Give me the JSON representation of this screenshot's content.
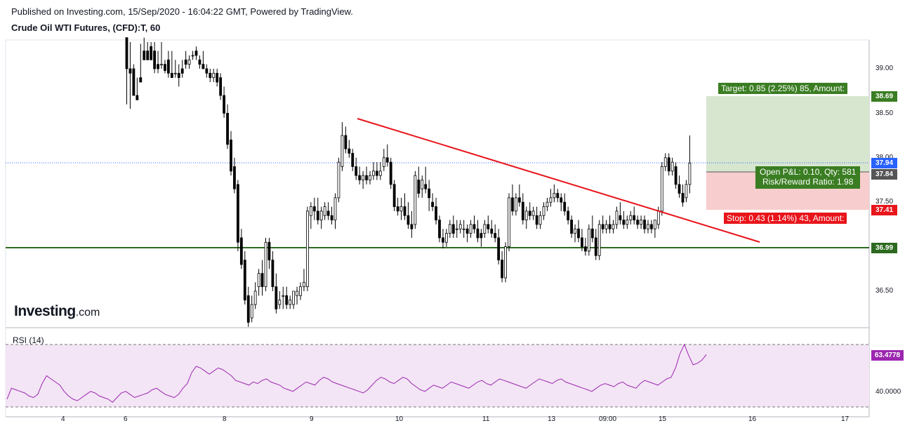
{
  "header": {
    "published": "Published on Investing.com, 15/Sep/2020 - 16:04:22 GMT, Powered by TradingView.",
    "title": "Crude Oil WTI Futures, (CFD):T, 60"
  },
  "logo": {
    "main": "Investing",
    "suffix": ".com"
  },
  "colors": {
    "up": "#ffffff",
    "down": "#000000",
    "wick": "#000000",
    "trendline": "#e8151b",
    "support": "#2d6a1f",
    "last_price_line": "#2962ff",
    "target": "#3a7d22",
    "stop": "#e8151b",
    "rsi": "#9c27b0",
    "rsi_fill": "#f3e5f5"
  },
  "price_axis": {
    "ticks": [
      "39.00",
      "38.50",
      "38.00",
      "37.50",
      "36.50"
    ]
  },
  "price_labels": [
    {
      "name": "target-price-label",
      "value": "38.69",
      "color": "#3a7d22"
    },
    {
      "name": "last-price-label",
      "value": "37.94",
      "color": "#2962ff"
    },
    {
      "name": "entry-price-label",
      "value": "37.84",
      "color": "#555555"
    },
    {
      "name": "stop-price-label",
      "value": "37.41",
      "color": "#e8151b"
    },
    {
      "name": "support-price-label",
      "value": "36.99",
      "color": "#2d6a1f"
    },
    {
      "name": "rsi-value-label",
      "value": "63.4778",
      "color": "#9c27b0"
    }
  ],
  "position": {
    "target_text": "Target: 0.85 (2.25%) 85, Amount:",
    "pnl_text": "Open P&L: 0.10, Qty: 581",
    "rr_text": "Risk/Reward Ratio: 1.98",
    "stop_text": "Stop: 0.43 (1.14%) 43, Amount:"
  },
  "rsi": {
    "label": "RSI (14)",
    "tick": "40.0000"
  },
  "x_axis": {
    "ticks": [
      "4",
      "6",
      "8",
      "9",
      "10",
      "11",
      "13",
      "09:00",
      "15",
      "16",
      "17"
    ]
  },
  "chart_data": {
    "type": "candlestick",
    "title": "Crude Oil WTI Futures, (CFD):T, 60",
    "x_labels": [
      "4",
      "6",
      "8",
      "9",
      "10",
      "11",
      "13",
      "09:00",
      "15",
      "16",
      "17"
    ],
    "y_ticks": [
      36.5,
      37.5,
      38.0,
      38.5,
      39.0
    ],
    "support_level": 36.99,
    "last_price": 37.94,
    "entry_price": 37.84,
    "target_price": 38.69,
    "stop_price": 37.41,
    "trendline": [
      {
        "x": "10",
        "y": 38.43
      },
      {
        "x": "16",
        "y": 37.07
      }
    ],
    "candles": [
      [
        39.35,
        39.3,
        39.0,
        38.6
      ],
      [
        39.0,
        39.3,
        38.95,
        38.55
      ],
      [
        39.0,
        39.05,
        38.7,
        38.7
      ],
      [
        38.7,
        38.9,
        38.65,
        38.65
      ],
      [
        38.9,
        39.28,
        38.85,
        38.85
      ],
      [
        39.2,
        39.35,
        39.1,
        39.1
      ],
      [
        39.2,
        39.3,
        39.1,
        39.1
      ],
      [
        39.25,
        39.3,
        39.1,
        39.1
      ],
      [
        39.2,
        39.3,
        39.0,
        38.95
      ],
      [
        39.05,
        39.2,
        39.0,
        38.95
      ],
      [
        39.05,
        39.3,
        39.05,
        39.0
      ],
      [
        39.05,
        39.1,
        38.98,
        38.95
      ],
      [
        39.1,
        39.2,
        38.95,
        38.9
      ],
      [
        38.95,
        39.2,
        38.9,
        38.9
      ],
      [
        38.95,
        39.1,
        38.95,
        38.9
      ],
      [
        38.95,
        39.05,
        38.9,
        38.8
      ],
      [
        39.0,
        39.1,
        38.95,
        38.9
      ],
      [
        39.1,
        39.2,
        39.05,
        39.0
      ],
      [
        39.05,
        39.15,
        39.1,
        39.0
      ],
      [
        39.15,
        39.2,
        39.15,
        39.1
      ],
      [
        39.2,
        39.25,
        39.15,
        39.1
      ],
      [
        39.1,
        39.15,
        39.05,
        39.0
      ],
      [
        39.05,
        39.2,
        39.0,
        39.0
      ],
      [
        39.0,
        39.05,
        38.95,
        38.9
      ],
      [
        38.95,
        39.0,
        38.9,
        38.85
      ],
      [
        38.9,
        39.0,
        38.95,
        38.85
      ],
      [
        38.95,
        39.0,
        38.85,
        38.8
      ],
      [
        38.9,
        38.95,
        38.7,
        38.65
      ],
      [
        38.7,
        38.8,
        38.5,
        38.45
      ],
      [
        38.5,
        38.6,
        38.15,
        38.1
      ],
      [
        38.2,
        38.3,
        37.85,
        37.8
      ],
      [
        37.9,
        38.0,
        37.65,
        37.6
      ],
      [
        37.7,
        37.75,
        37.05,
        36.95
      ],
      [
        37.1,
        37.2,
        36.8,
        36.75
      ],
      [
        36.85,
        36.95,
        36.4,
        36.35
      ],
      [
        36.45,
        36.55,
        36.15,
        36.1
      ],
      [
        36.2,
        36.45,
        36.35,
        36.15
      ],
      [
        36.35,
        36.6,
        36.5,
        36.3
      ],
      [
        36.55,
        36.75,
        36.7,
        36.45
      ],
      [
        36.7,
        36.85,
        36.55,
        36.45
      ],
      [
        36.55,
        37.1,
        37.05,
        36.5
      ],
      [
        37.05,
        37.1,
        36.85,
        36.75
      ],
      [
        36.85,
        36.95,
        36.55,
        36.5
      ],
      [
        36.55,
        36.7,
        36.3,
        36.25
      ],
      [
        36.35,
        36.5,
        36.4,
        36.3
      ],
      [
        36.45,
        36.55,
        36.45,
        36.3
      ],
      [
        36.45,
        36.55,
        36.35,
        36.3
      ],
      [
        36.35,
        36.45,
        36.4,
        36.3
      ],
      [
        36.35,
        36.5,
        36.5,
        36.3
      ],
      [
        36.45,
        36.55,
        36.5,
        36.35
      ],
      [
        36.45,
        36.6,
        36.55,
        36.4
      ],
      [
        36.55,
        36.75,
        36.6,
        36.5
      ],
      [
        36.55,
        37.45,
        37.4,
        36.5
      ],
      [
        37.35,
        37.5,
        37.45,
        37.2
      ],
      [
        37.45,
        37.55,
        37.4,
        37.3
      ],
      [
        37.4,
        37.55,
        37.3,
        37.25
      ],
      [
        37.3,
        37.45,
        37.4,
        37.2
      ],
      [
        37.35,
        37.5,
        37.45,
        37.3
      ],
      [
        37.4,
        37.5,
        37.35,
        37.3
      ],
      [
        37.35,
        37.45,
        37.3,
        37.25
      ],
      [
        37.3,
        37.6,
        37.55,
        37.2
      ],
      [
        37.55,
        38.0,
        37.95,
        37.5
      ],
      [
        37.9,
        38.4,
        38.25,
        37.85
      ],
      [
        38.25,
        38.35,
        38.1,
        38.05
      ],
      [
        38.1,
        38.2,
        38.05,
        38.0
      ],
      [
        38.05,
        38.1,
        37.9,
        37.85
      ],
      [
        37.9,
        38.0,
        37.8,
        37.75
      ],
      [
        37.8,
        37.9,
        37.75,
        37.7
      ],
      [
        37.75,
        37.85,
        37.8,
        37.65
      ],
      [
        37.8,
        37.9,
        37.75,
        37.7
      ],
      [
        37.75,
        37.85,
        37.8,
        37.7
      ],
      [
        37.8,
        37.95,
        37.85,
        37.75
      ],
      [
        37.85,
        37.95,
        37.8,
        37.75
      ],
      [
        37.8,
        37.95,
        37.85,
        37.75
      ],
      [
        37.9,
        38.1,
        38.0,
        37.85
      ],
      [
        38.0,
        38.15,
        37.95,
        37.9
      ],
      [
        37.95,
        38.0,
        37.7,
        37.65
      ],
      [
        37.7,
        37.75,
        37.45,
        37.4
      ],
      [
        37.45,
        37.55,
        37.4,
        37.35
      ],
      [
        37.4,
        37.55,
        37.45,
        37.3
      ],
      [
        37.45,
        37.6,
        37.35,
        37.3
      ],
      [
        37.35,
        37.5,
        37.25,
        37.2
      ],
      [
        37.25,
        37.4,
        37.2,
        37.1
      ],
      [
        37.25,
        37.85,
        37.8,
        37.2
      ],
      [
        37.75,
        37.9,
        37.6,
        37.55
      ],
      [
        37.65,
        37.8,
        37.75,
        37.55
      ],
      [
        37.7,
        37.9,
        37.65,
        37.6
      ],
      [
        37.65,
        37.75,
        37.55,
        37.4
      ],
      [
        37.5,
        37.6,
        37.45,
        37.4
      ],
      [
        37.45,
        37.55,
        37.3,
        37.25
      ],
      [
        37.3,
        37.35,
        37.1,
        37.05
      ],
      [
        37.1,
        37.2,
        37.05,
        36.98
      ],
      [
        37.05,
        37.2,
        37.15,
        37.0
      ],
      [
        37.15,
        37.3,
        37.25,
        37.1
      ],
      [
        37.25,
        37.35,
        37.15,
        37.1
      ],
      [
        37.2,
        37.3,
        37.2,
        37.1
      ],
      [
        37.2,
        37.3,
        37.25,
        37.15
      ],
      [
        37.2,
        37.3,
        37.2,
        37.1
      ],
      [
        37.2,
        37.25,
        37.15,
        37.05
      ],
      [
        37.15,
        37.3,
        37.25,
        37.1
      ],
      [
        37.25,
        37.35,
        37.2,
        37.15
      ],
      [
        37.2,
        37.3,
        37.1,
        37.05
      ],
      [
        37.15,
        37.2,
        37.1,
        37.0
      ],
      [
        37.15,
        37.3,
        37.25,
        37.1
      ],
      [
        37.25,
        37.35,
        37.2,
        37.15
      ],
      [
        37.2,
        37.3,
        37.15,
        37.1
      ],
      [
        37.15,
        37.25,
        37.1,
        37.05
      ],
      [
        37.1,
        37.2,
        36.85,
        36.8
      ],
      [
        36.85,
        36.95,
        36.65,
        36.6
      ],
      [
        36.65,
        37.05,
        37.0,
        36.6
      ],
      [
        37.0,
        37.6,
        37.55,
        36.95
      ],
      [
        37.55,
        37.7,
        37.4,
        37.35
      ],
      [
        37.4,
        37.6,
        37.55,
        37.35
      ],
      [
        37.55,
        37.7,
        37.5,
        37.45
      ],
      [
        37.5,
        37.6,
        37.3,
        37.25
      ],
      [
        37.3,
        37.45,
        37.4,
        37.2
      ],
      [
        37.4,
        37.5,
        37.35,
        37.3
      ],
      [
        37.35,
        37.45,
        37.4,
        37.3
      ],
      [
        37.35,
        37.45,
        37.25,
        37.2
      ],
      [
        37.25,
        37.4,
        37.35,
        37.2
      ],
      [
        37.35,
        37.5,
        37.45,
        37.3
      ],
      [
        37.45,
        37.55,
        37.5,
        37.4
      ],
      [
        37.5,
        37.65,
        37.55,
        37.45
      ],
      [
        37.55,
        37.7,
        37.6,
        37.5
      ],
      [
        37.6,
        37.65,
        37.55,
        37.5
      ],
      [
        37.55,
        37.6,
        37.5,
        37.4
      ],
      [
        37.5,
        37.6,
        37.4,
        37.35
      ],
      [
        37.4,
        37.45,
        37.3,
        37.25
      ],
      [
        37.3,
        37.35,
        37.15,
        37.1
      ],
      [
        37.15,
        37.25,
        37.2,
        37.05
      ],
      [
        37.2,
        37.3,
        37.1,
        37.05
      ],
      [
        37.1,
        37.2,
        37.0,
        36.95
      ],
      [
        37.0,
        37.1,
        36.95,
        36.9
      ],
      [
        36.95,
        37.25,
        37.2,
        36.9
      ],
      [
        37.2,
        37.35,
        37.1,
        37.05
      ],
      [
        37.1,
        37.2,
        36.9,
        36.85
      ],
      [
        36.9,
        37.3,
        37.25,
        36.85
      ],
      [
        37.25,
        37.35,
        37.2,
        37.15
      ],
      [
        37.2,
        37.3,
        37.25,
        37.15
      ],
      [
        37.25,
        37.35,
        37.2,
        37.15
      ],
      [
        37.2,
        37.3,
        37.25,
        37.15
      ],
      [
        37.25,
        37.45,
        37.4,
        37.2
      ],
      [
        37.35,
        37.5,
        37.3,
        37.25
      ],
      [
        37.3,
        37.4,
        37.25,
        37.2
      ],
      [
        37.25,
        37.35,
        37.3,
        37.2
      ],
      [
        37.3,
        37.4,
        37.35,
        37.25
      ],
      [
        37.35,
        37.45,
        37.3,
        37.25
      ],
      [
        37.3,
        37.35,
        37.25,
        37.2
      ],
      [
        37.25,
        37.35,
        37.3,
        37.2
      ],
      [
        37.3,
        37.35,
        37.2,
        37.15
      ],
      [
        37.2,
        37.3,
        37.25,
        37.15
      ],
      [
        37.25,
        37.3,
        37.2,
        37.15
      ],
      [
        37.2,
        37.25,
        37.3,
        37.1
      ],
      [
        37.25,
        37.45,
        37.4,
        37.2
      ],
      [
        37.4,
        37.95,
        37.9,
        37.35
      ],
      [
        37.9,
        38.05,
        38.0,
        37.85
      ],
      [
        38.0,
        38.05,
        37.85,
        37.8
      ],
      [
        37.85,
        38.0,
        37.95,
        37.8
      ],
      [
        37.9,
        37.95,
        37.7,
        37.65
      ],
      [
        37.7,
        37.8,
        37.6,
        37.55
      ],
      [
        37.6,
        37.7,
        37.5,
        37.45
      ],
      [
        37.55,
        37.75,
        37.7,
        37.5
      ],
      [
        37.7,
        38.25,
        37.94,
        37.6
      ]
    ],
    "rsi_series": [
      35,
      42,
      41,
      40,
      39,
      37,
      36,
      38,
      45,
      50,
      48,
      46,
      44,
      40,
      37,
      35,
      34,
      36,
      38,
      40,
      39,
      37,
      36,
      35,
      33,
      36,
      39,
      40,
      38,
      36,
      37,
      38,
      39,
      41,
      42,
      40,
      38,
      37,
      36,
      38,
      42,
      45,
      52,
      56,
      55,
      53,
      51,
      53,
      55,
      54,
      52,
      50,
      47,
      46,
      45,
      44,
      46,
      45,
      47,
      48,
      46,
      45,
      44,
      42,
      41,
      40,
      42,
      44,
      46,
      45,
      44,
      47,
      49,
      48,
      46,
      45,
      44,
      43,
      42,
      41,
      40,
      39,
      41,
      44,
      47,
      49,
      48,
      46,
      45,
      47,
      49,
      48,
      45,
      43,
      41,
      40,
      42,
      44,
      43,
      42,
      44,
      46,
      45,
      44,
      43,
      42,
      44,
      46,
      47,
      45,
      44,
      46,
      48,
      47,
      46,
      45,
      44,
      43,
      42,
      44,
      46,
      48,
      47,
      46,
      45,
      47,
      48,
      46,
      45,
      44,
      43,
      42,
      41,
      40,
      42,
      44,
      45,
      44,
      43,
      45,
      46,
      44,
      43,
      42,
      45,
      47,
      46,
      45,
      44,
      46,
      48,
      49,
      55,
      64,
      70,
      63,
      57,
      58,
      60,
      63.4778
    ],
    "rsi_ylim": [
      20,
      80
    ]
  }
}
